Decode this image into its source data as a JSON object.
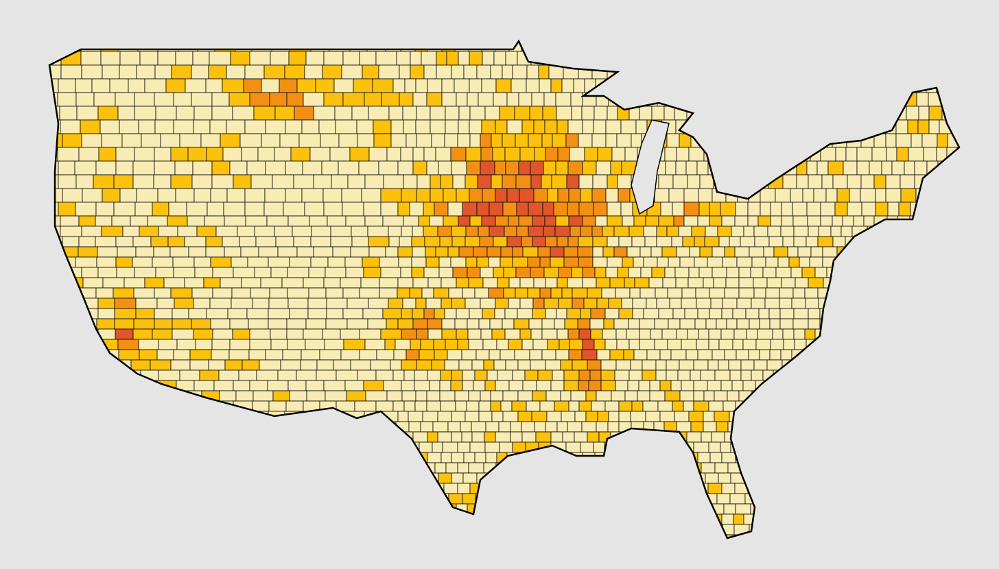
{
  "map": {
    "colors": [
      "#f8ecb4",
      "#fcc10c",
      "#f39014",
      "#e0552b"
    ],
    "background": "#e5e5e5",
    "border": "#000000"
  }
}
